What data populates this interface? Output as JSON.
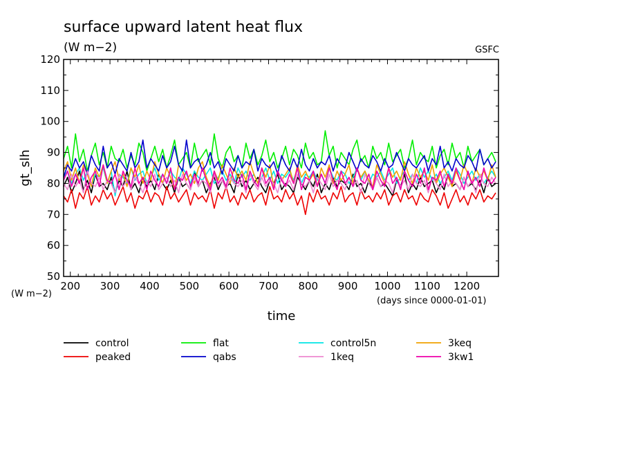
{
  "chart_data": {
    "type": "line",
    "title": "surface upward latent heat flux",
    "subtitle": "(W m−2)",
    "source_label": "GSFC",
    "ylabel": "gt_slh",
    "yunit": "(W m−2)",
    "xlabel": "time",
    "xunit": "(days since 0000-01-01)",
    "xlim": [
      183,
      1280
    ],
    "ylim": [
      50,
      120
    ],
    "xticks": [
      200,
      300,
      400,
      500,
      600,
      700,
      800,
      900,
      1000,
      1100,
      1200
    ],
    "xtick_labels": [
      "200",
      "300",
      "400",
      "500",
      "600",
      "700",
      "800",
      "900",
      "1000",
      "1100",
      "1200"
    ],
    "yticks": [
      50,
      60,
      70,
      80,
      90,
      100,
      110,
      120
    ],
    "ytick_labels": [
      "50",
      "60",
      "70",
      "80",
      "90",
      "100",
      "110",
      "120"
    ],
    "grid": false,
    "legend_position": "bottom",
    "series": [
      {
        "name": "control",
        "color": "#000000",
        "x_start": 183,
        "x_step": 10,
        "values": [
          79,
          82,
          77,
          80,
          84,
          78,
          81,
          77,
          83,
          79,
          80,
          78,
          82,
          77,
          81,
          79,
          84,
          78,
          80,
          77,
          82,
          79,
          81,
          78,
          83,
          80,
          78,
          81,
          77,
          82,
          79,
          80,
          78,
          84,
          79,
          81,
          77,
          80,
          82,
          78,
          81,
          79,
          80,
          77,
          83,
          79,
          81,
          78,
          80,
          82,
          79,
          77,
          81,
          80,
          83,
          78,
          80,
          79,
          77,
          82,
          80,
          78,
          81,
          79,
          83,
          77,
          80,
          78,
          82,
          79,
          81,
          80,
          78,
          83,
          79,
          80,
          77,
          81,
          78,
          82,
          79,
          80,
          78,
          76,
          81,
          79,
          83,
          77,
          80,
          78,
          82,
          79,
          80,
          81,
          77,
          80,
          78,
          83,
          79,
          80,
          78,
          82,
          79,
          80,
          78,
          81,
          77,
          82,
          79,
          80
        ]
      },
      {
        "name": "flat",
        "color": "#00ee00",
        "x_start": 183,
        "x_step": 10,
        "values": [
          88,
          92,
          85,
          96,
          87,
          91,
          84,
          89,
          93,
          86,
          90,
          85,
          92,
          88,
          87,
          91,
          85,
          89,
          86,
          93,
          90,
          84,
          88,
          92,
          87,
          91,
          85,
          89,
          94,
          86,
          88,
          90,
          85,
          93,
          87,
          89,
          91,
          86,
          96,
          88,
          85,
          90,
          92,
          87,
          89,
          85,
          93,
          88,
          91,
          86,
          89,
          94,
          87,
          90,
          85,
          88,
          92,
          86,
          91,
          89,
          85,
          93,
          88,
          90,
          86,
          87,
          97,
          89,
          92,
          85,
          90,
          88,
          86,
          91,
          94,
          87,
          89,
          85,
          92,
          88,
          90,
          86,
          93,
          87,
          89,
          91,
          85,
          88,
          94,
          86,
          90,
          88,
          87,
          92,
          85,
          89,
          91,
          86,
          93,
          88,
          90,
          85,
          92,
          87,
          89,
          91,
          86,
          88,
          90,
          87
        ]
      },
      {
        "name": "control5n",
        "color": "#00e5e5",
        "x_start": 183,
        "x_step": 10,
        "values": [
          82,
          84,
          80,
          83,
          85,
          81,
          84,
          79,
          83,
          82,
          85,
          80,
          84,
          76,
          83,
          82,
          80,
          85,
          81,
          83,
          84,
          80,
          82,
          85,
          81,
          83,
          80,
          84,
          82,
          81,
          85,
          83,
          80,
          84,
          82,
          81,
          83,
          85,
          80,
          82,
          84,
          81,
          83,
          80,
          85,
          82,
          84,
          81,
          83,
          80,
          82,
          85,
          81,
          84,
          80,
          83,
          82,
          84,
          81,
          85,
          80,
          83,
          82,
          84,
          81,
          83,
          80,
          85,
          82,
          81,
          84,
          83,
          80,
          82,
          85,
          81,
          84,
          80,
          83,
          82,
          84,
          81,
          83,
          85,
          80,
          82,
          84,
          81,
          83,
          80,
          85,
          82,
          84,
          81,
          83,
          80,
          82,
          84,
          81,
          85,
          83,
          80,
          82,
          84,
          81,
          83,
          80,
          82,
          84,
          82
        ]
      },
      {
        "name": "3keq",
        "color": "#f0a000",
        "x_start": 183,
        "x_step": 10,
        "values": [
          84,
          87,
          81,
          85,
          80,
          86,
          83,
          79,
          85,
          82,
          86,
          80,
          84,
          87,
          81,
          83,
          79,
          85,
          82,
          86,
          80,
          84,
          81,
          87,
          83,
          80,
          85,
          82,
          78,
          86,
          84,
          81,
          83,
          80,
          85,
          87,
          82,
          79,
          84,
          81,
          86,
          83,
          80,
          85,
          82,
          84,
          81,
          87,
          83,
          80,
          85,
          82,
          86,
          79,
          84,
          81,
          83,
          85,
          80,
          86,
          82,
          84,
          81,
          83,
          79,
          85,
          82,
          86,
          80,
          84,
          81,
          83,
          86,
          80,
          85,
          82,
          84,
          81,
          79,
          86,
          83,
          80,
          85,
          82,
          84,
          81,
          87,
          83,
          80,
          85,
          82,
          84,
          81,
          86,
          80,
          83,
          85,
          82,
          79,
          84,
          81,
          86,
          83,
          80,
          85,
          82,
          84,
          81,
          86,
          82
        ]
      },
      {
        "name": "peaked",
        "color": "#ee0000",
        "x_start": 183,
        "x_step": 10,
        "values": [
          76,
          74,
          78,
          72,
          77,
          75,
          79,
          73,
          76,
          74,
          78,
          75,
          77,
          73,
          76,
          79,
          74,
          77,
          72,
          76,
          75,
          78,
          74,
          77,
          76,
          73,
          79,
          75,
          77,
          74,
          76,
          78,
          73,
          77,
          75,
          76,
          74,
          78,
          72,
          77,
          75,
          79,
          74,
          76,
          73,
          77,
          75,
          78,
          74,
          76,
          77,
          73,
          79,
          75,
          76,
          74,
          78,
          75,
          77,
          73,
          76,
          70,
          77,
          74,
          78,
          75,
          76,
          73,
          77,
          75,
          79,
          74,
          76,
          77,
          73,
          78,
          75,
          76,
          74,
          77,
          75,
          78,
          73,
          76,
          77,
          74,
          78,
          75,
          76,
          73,
          77,
          75,
          74,
          78,
          76,
          73,
          77,
          72,
          75,
          78,
          74,
          76,
          73,
          77,
          75,
          78,
          74,
          76,
          75,
          77
        ]
      },
      {
        "name": "qabs",
        "color": "#0000cc",
        "x_start": 183,
        "x_step": 10,
        "values": [
          82,
          86,
          84,
          88,
          85,
          87,
          83,
          89,
          86,
          84,
          92,
          85,
          87,
          83,
          88,
          86,
          84,
          90,
          85,
          87,
          94,
          85,
          88,
          86,
          84,
          89,
          85,
          87,
          92,
          86,
          84,
          94,
          85,
          87,
          88,
          84,
          86,
          90,
          85,
          87,
          83,
          88,
          86,
          84,
          89,
          85,
          87,
          86,
          91,
          84,
          88,
          86,
          85,
          87,
          83,
          89,
          86,
          84,
          88,
          85,
          91,
          86,
          84,
          88,
          85,
          87,
          86,
          89,
          84,
          88,
          86,
          85,
          90,
          87,
          84,
          88,
          86,
          85,
          89,
          87,
          84,
          88,
          85,
          86,
          90,
          87,
          84,
          88,
          86,
          85,
          87,
          89,
          84,
          88,
          86,
          92,
          85,
          87,
          84,
          88,
          86,
          85,
          89,
          87,
          84,
          91,
          86,
          88,
          85,
          87
        ]
      },
      {
        "name": "1keq",
        "color": "#ee88d0",
        "x_start": 183,
        "x_step": 10,
        "values": [
          80,
          78,
          83,
          79,
          81,
          77,
          84,
          80,
          79,
          82,
          78,
          81,
          80,
          77,
          83,
          79,
          81,
          78,
          82,
          80,
          77,
          81,
          79,
          83,
          78,
          80,
          82,
          79,
          81,
          77,
          83,
          80,
          78,
          82,
          79,
          81,
          80,
          77,
          83,
          79,
          81,
          78,
          82,
          80,
          79,
          81,
          77,
          83,
          80,
          78,
          82,
          79,
          81,
          80,
          77,
          82,
          79,
          81,
          78,
          83,
          80,
          79,
          81,
          77,
          82,
          80,
          78,
          83,
          79,
          81,
          80,
          78,
          82,
          79,
          81,
          77,
          83,
          80,
          78,
          82,
          79,
          81,
          80,
          77,
          82,
          79,
          81,
          78,
          83,
          80,
          79,
          81,
          77,
          82,
          80,
          78,
          83,
          79,
          81,
          80,
          78,
          82,
          79,
          81,
          77,
          83,
          80,
          79,
          82,
          80
        ]
      },
      {
        "name": "3kw1",
        "color": "#ee00aa",
        "x_start": 183,
        "x_step": 10,
        "values": [
          81,
          84,
          79,
          83,
          80,
          85,
          78,
          82,
          84,
          79,
          86,
          81,
          80,
          83,
          78,
          84,
          81,
          79,
          85,
          80,
          82,
          78,
          84,
          81,
          79,
          83,
          80,
          85,
          78,
          82,
          81,
          84,
          79,
          83,
          80,
          85,
          81,
          78,
          84,
          80,
          82,
          79,
          85,
          81,
          80,
          83,
          78,
          84,
          81,
          79,
          85,
          80,
          82,
          78,
          84,
          81,
          79,
          83,
          80,
          85,
          78,
          82,
          81,
          84,
          79,
          83,
          80,
          85,
          81,
          78,
          84,
          80,
          82,
          79,
          85,
          81,
          80,
          83,
          78,
          84,
          81,
          79,
          85,
          80,
          82,
          78,
          84,
          81,
          79,
          83,
          80,
          85,
          78,
          82,
          81,
          84,
          79,
          83,
          80,
          85,
          81,
          78,
          84,
          80,
          82,
          79,
          85,
          81,
          80,
          82
        ]
      }
    ]
  }
}
